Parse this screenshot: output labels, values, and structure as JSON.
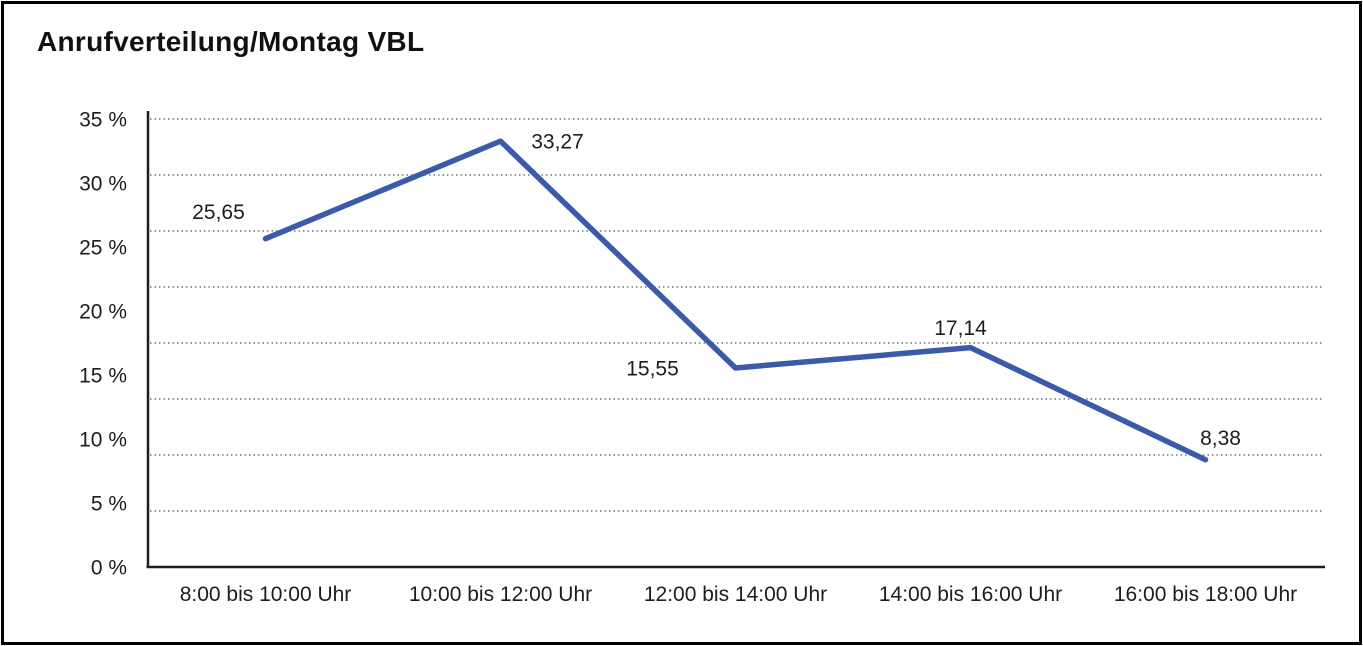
{
  "page": {
    "title": "Anrufverteilung/Montag VBL"
  },
  "chart_data": {
    "type": "line",
    "title": "Anrufverteilung/Montag VBL",
    "categories": [
      "8:00 bis 10:00 Uhr",
      "10:00 bis 12:00 Uhr",
      "12:00 bis 14:00 Uhr",
      "14:00 bis 16:00 Uhr",
      "16:00 bis 18:00 Uhr"
    ],
    "values": [
      25.65,
      33.27,
      15.55,
      17.14,
      8.38
    ],
    "value_labels": [
      "25,65",
      "33,27",
      "15,55",
      "17,14",
      "8,38"
    ],
    "label_positions": [
      "above-left",
      "right",
      "left",
      "above",
      "above-right"
    ],
    "y_tick_labels": [
      "35 %",
      "30 %",
      "25 %",
      "20 %",
      "15 %",
      "10 %",
      "5 %",
      "0 %"
    ],
    "ylim": [
      0,
      35
    ],
    "y_grid_intervals": 8,
    "grid": "horizontal-dotted",
    "legend": "none",
    "line_color": "#3B5AA9",
    "xlabel": "",
    "ylabel": ""
  },
  "colors": {
    "line": "#3B5AA9",
    "axis": "#1f1f1f",
    "grid": "#595959",
    "text": "#1d1d1d",
    "title_text": "#111111",
    "background": "#ffffff",
    "frame": "#000000"
  }
}
